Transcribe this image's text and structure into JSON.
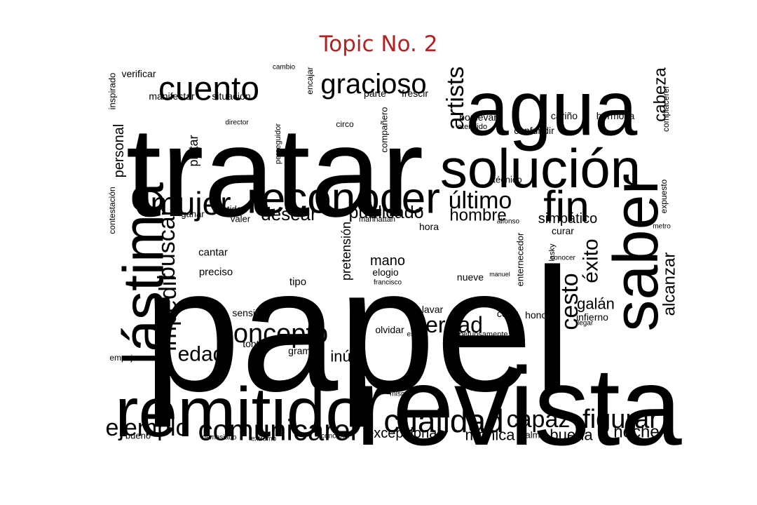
{
  "title": "Topic No. 2",
  "colors": {
    "title": "#b22222",
    "words": "#000000",
    "background": "#ffffff"
  },
  "words": [
    {
      "text": "papel",
      "weight": 100
    },
    {
      "text": "tratar",
      "weight": 74
    },
    {
      "text": "revista",
      "weight": 70
    },
    {
      "text": "agua",
      "weight": 58
    },
    {
      "text": "remitido",
      "weight": 55
    },
    {
      "text": "solución",
      "weight": 46
    },
    {
      "text": "lástima",
      "weight": 44
    },
    {
      "text": "saber",
      "weight": 42
    },
    {
      "text": "reconocer",
      "weight": 37
    },
    {
      "text": "fin",
      "weight": 33
    },
    {
      "text": "cuento",
      "weight": 33
    },
    {
      "text": "cualidad",
      "weight": 28
    },
    {
      "text": "mujer",
      "weight": 27
    },
    {
      "text": "comunicarer",
      "weight": 27
    },
    {
      "text": "figurar",
      "weight": 25
    },
    {
      "text": "concepto",
      "weight": 25
    },
    {
      "text": "gracioso",
      "weight": 24
    },
    {
      "text": "impedir",
      "weight": 24
    },
    {
      "text": "buscar",
      "weight": 24
    },
    {
      "text": "cesto",
      "weight": 23
    },
    {
      "text": "capaz",
      "weight": 23
    },
    {
      "text": "ejemplo",
      "weight": 22
    },
    {
      "text": "último",
      "weight": 22
    },
    {
      "text": "artists",
      "weight": 22
    },
    {
      "text": "verdad",
      "weight": 21
    },
    {
      "text": "éxito",
      "weight": 20
    },
    {
      "text": "edad",
      "weight": 20
    },
    {
      "text": "desear",
      "weight": 19
    },
    {
      "text": "publicado",
      "weight": 18
    },
    {
      "text": "hombre",
      "weight": 18
    },
    {
      "text": "noche",
      "weight": 18
    },
    {
      "text": "alcanzar",
      "weight": 17
    },
    {
      "text": "cabeza",
      "weight": 17
    },
    {
      "text": "mónica",
      "weight": 15
    },
    {
      "text": "buena",
      "weight": 15
    },
    {
      "text": "inútil",
      "weight": 15
    },
    {
      "text": "galán",
      "weight": 15
    },
    {
      "text": "excepcional",
      "weight": 14
    },
    {
      "text": "personal",
      "weight": 14
    },
    {
      "text": "simpático",
      "weight": 14
    },
    {
      "text": "mano",
      "weight": 14
    },
    {
      "text": "pretensión",
      "weight": 14
    },
    {
      "text": "platar",
      "weight": 13
    },
    {
      "text": "cantar",
      "weight": 12
    },
    {
      "text": "preciso",
      "weight": 12
    },
    {
      "text": "tipo",
      "weight": 12
    },
    {
      "text": "lavar",
      "weight": 12
    },
    {
      "text": "olvidar",
      "weight": 12
    },
    {
      "text": "color",
      "weight": 12
    },
    {
      "text": "honor",
      "weight": 12
    },
    {
      "text": "infierno",
      "weight": 12
    },
    {
      "text": "nueve",
      "weight": 12
    },
    {
      "text": "hora",
      "weight": 12
    },
    {
      "text": "curar",
      "weight": 12
    },
    {
      "text": "elogio",
      "weight": 12
    },
    {
      "text": "sensible",
      "weight": 12
    },
    {
      "text": "tontería",
      "weight": 12
    },
    {
      "text": "gramo",
      "weight": 12
    },
    {
      "text": "verificar",
      "weight": 12
    },
    {
      "text": "manifestar",
      "weight": 12
    },
    {
      "text": "situación",
      "weight": 12
    },
    {
      "text": "parte",
      "weight": 12
    },
    {
      "text": "frescir",
      "weight": 12
    },
    {
      "text": "boulevard",
      "weight": 12
    },
    {
      "text": "cariño",
      "weight": 12
    },
    {
      "text": "hermosa",
      "weight": 12
    },
    {
      "text": "confundir",
      "weight": 12
    },
    {
      "text": "técnico",
      "weight": 11
    },
    {
      "text": "ganar",
      "weight": 11
    },
    {
      "text": "sentido",
      "weight": 11
    },
    {
      "text": "valer",
      "weight": 11
    },
    {
      "text": "inspirado",
      "weight": 11
    },
    {
      "text": "compañero",
      "weight": 11
    },
    {
      "text": "enternecedor",
      "weight": 11
    },
    {
      "text": "expuesto",
      "weight": 11
    },
    {
      "text": "complacerer",
      "weight": 11
    },
    {
      "text": "palma",
      "weight": 11
    },
    {
      "text": "bueno",
      "weight": 11
    },
    {
      "text": "empujar",
      "weight": 11
    },
    {
      "text": "encajar",
      "weight": 11
    },
    {
      "text": "contestación",
      "weight": 10
    },
    {
      "text": "perseguidor",
      "weight": 10
    },
    {
      "text": "lasky",
      "weight": 10
    },
    {
      "text": "respetuosamente",
      "weight": 10
    },
    {
      "text": "manhattan",
      "weight": 10
    },
    {
      "text": "circo",
      "weight": 10
    },
    {
      "text": "atendido",
      "weight": 10
    },
    {
      "text": "director",
      "weight": 9
    },
    {
      "text": "cambio",
      "weight": 9
    },
    {
      "text": "alfonso",
      "weight": 9
    },
    {
      "text": "conocer",
      "weight": 9
    },
    {
      "text": "llegar",
      "weight": 9
    },
    {
      "text": "metro",
      "weight": 9
    },
    {
      "text": "manuel",
      "weight": 9
    },
    {
      "text": "francisco",
      "weight": 9
    },
    {
      "text": "este",
      "weight": 9
    },
    {
      "text": "mismo",
      "weight": 9
    },
    {
      "text": "demasiado",
      "weight": 9
    },
    {
      "text": "extremo",
      "weight": 9
    },
    {
      "text": "concretar",
      "weight": 9
    }
  ]
}
